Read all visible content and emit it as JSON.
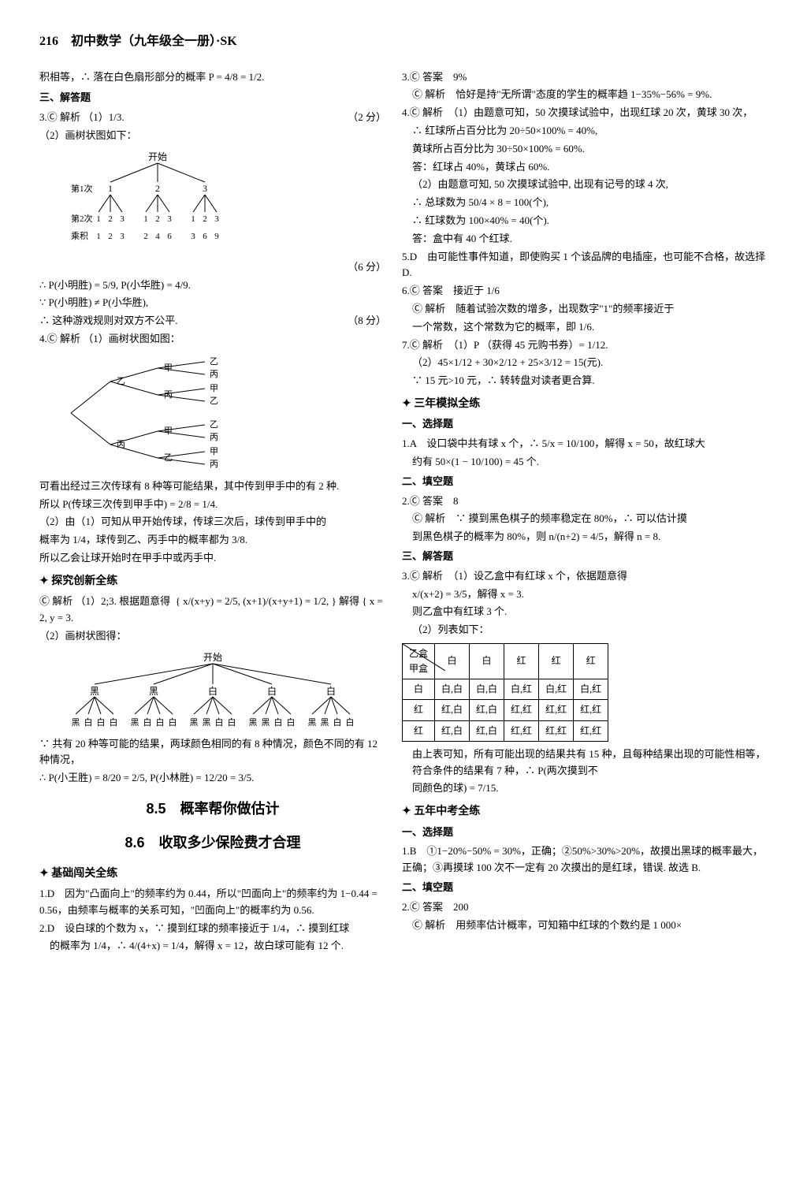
{
  "header": {
    "page_num": "216",
    "title": "初中数学（九年级全一册）·SK"
  },
  "left": {
    "intro": "积相等，∴ 落在白色扇形部分的概率 P = 4/8 = 1/2.",
    "sec3_title": "三、解答题",
    "q3_label": "3.Ⓒ 解析",
    "q3_part1": "（1）1/3.",
    "q3_score1": "（2 分）",
    "q3_part2_intro": "（2）画树状图如下：",
    "tree1": {
      "root": "开始",
      "row1_label": "第1次",
      "row1": [
        "1",
        "2",
        "3"
      ],
      "row2_label": "第2次",
      "row2_groups": [
        [
          "1",
          "2",
          "3"
        ],
        [
          "1",
          "2",
          "3"
        ],
        [
          "1",
          "2",
          "3"
        ]
      ],
      "row3_label": "乘积",
      "row3_groups": [
        [
          "1",
          "2",
          "3"
        ],
        [
          "2",
          "4",
          "6"
        ],
        [
          "3",
          "6",
          "9"
        ]
      ]
    },
    "q3_score2": "（6 分）",
    "q3_line1": "∴ P(小明胜) = 5/9, P(小华胜) = 4/9.",
    "q3_line2": "∵ P(小明胜) ≠ P(小华胜),",
    "q3_line3": "∴ 这种游戏规则对双方不公平.",
    "q3_score3": "（8 分）",
    "q4_label": "4.Ⓒ 解析",
    "q4_part1": "（1）画树状图如图：",
    "tree2_labels": [
      "甲",
      "乙",
      "丙"
    ],
    "q4_txt1": "可看出经过三次传球有 8 种等可能结果，其中传到甲手中的有 2 种.",
    "q4_txt2": "所以 P(传球三次传到甲手中) = 2/8 = 1/4.",
    "q4_txt3": "（2）由（1）可知从甲开始传球，传球三次后，球传到甲手中的",
    "q4_txt4": "概率为 1/4，球传到乙、丙手中的概率都为 3/8.",
    "q4_txt5": "所以乙会让球开始时在甲手中或丙手中.",
    "star1": "探究创新全练",
    "ex_label": "Ⓒ 解析",
    "ex_part1": "（1）2;3. 根据题意得",
    "ex_eq1_a": "x/(x+y) = 2/5,",
    "ex_eq1_b": "(x+1)/(x+y+1) = 1/2,",
    "ex_eq1_sol": "解得 { x = 2, y = 3.",
    "ex_part2": "（2）画树状图得：",
    "tree3": {
      "root": "开始",
      "row1": [
        "黑",
        "黑",
        "白",
        "白",
        "白"
      ],
      "row2_each": [
        "黑",
        "白",
        "白",
        "白"
      ]
    },
    "ex_txt1": "∵ 共有 20 种等可能的结果，两球颜色相同的有 8 种情况，颜色不同的有 12 种情况，",
    "ex_txt2": "∴ P(小王胜) = 8/20 = 2/5, P(小林胜) = 12/20 = 3/5.",
    "title85": "8.5　概率帮你做估计",
    "title86": "8.6　收取多少保险费才合理",
    "star2": "基础闯关全练",
    "b1": "1.D　因为\"凸面向上\"的频率约为 0.44，所以\"凹面向上\"的频率约为 1−0.44 = 0.56，由频率与概率的关系可知，\"凹面向上\"的概率约为 0.56.",
    "b2a": "2.D　设白球的个数为 x，∵ 摸到红球的频率接近于 1/4，∴ 摸到红球",
    "b2b": "的概率为 1/4，∴ 4/(4+x) = 1/4，解得 x = 12，故白球可能有 12 个."
  },
  "right": {
    "r3": "3.Ⓒ 答案　9%",
    "r3_exp": "Ⓒ 解析　恰好是持\"无所谓\"态度的学生的概率趋 1−35%−56% = 9%.",
    "r4_a": "4.Ⓒ 解析　（1）由题意可知，50 次摸球试验中，出现红球 20 次，黄球 30 次，",
    "r4_b": "∴ 红球所占百分比为 20÷50×100% = 40%,",
    "r4_c": "黄球所占百分比为 30÷50×100% = 60%.",
    "r4_d": "答：红球占 40%，黄球占 60%.",
    "r4_e": "（2）由题意可知, 50 次摸球试验中, 出现有记号的球 4 次,",
    "r4_f": "∴ 总球数为 50/4 × 8 = 100(个),",
    "r4_g": "∴ 红球数为 100×40% = 40(个).",
    "r4_h": "答：盒中有 40 个红球.",
    "r5": "5.D　由可能性事件知道，即使购买 1 个该品牌的电插座，也可能不合格，故选择 D.",
    "r6a": "6.Ⓒ 答案　接近于 1/6",
    "r6b": "Ⓒ 解析　随着试验次数的增多，出现数字\"1\"的频率接近于",
    "r6c": "一个常数，这个常数为它的概率，即 1/6.",
    "r7a": "7.Ⓒ 解析　（1）P （获得 45 元购书券）= 1/12.",
    "r7b": "（2）45×1/12 + 30×2/12 + 25×3/12 = 15(元).",
    "r7c": "∵ 15 元>10 元，∴ 转转盘对读者更合算.",
    "star3": "三年模拟全练",
    "s1_title": "一、选择题",
    "s1_a": "1.A　设口袋中共有球 x 个，∴ 5/x = 10/100，解得 x = 50，故红球大",
    "s1_b": "约有 50×(1 − 10/100) = 45 个.",
    "s2_title": "二、填空题",
    "s2_a": "2.Ⓒ 答案　8",
    "s2_b": "Ⓒ 解析　∵ 摸到黑色棋子的频率稳定在 80%，∴ 可以估计摸",
    "s2_c": "到黑色棋子的概率为 80%，则 n/(n+2) = 4/5，解得 n = 8.",
    "s3_title": "三、解答题",
    "s3_a": "3.Ⓒ 解析　（1）设乙盒中有红球 x 个，依据题意得",
    "s3_b": "x/(x+2) = 3/5，解得 x = 3.",
    "s3_c": "则乙盒中有红球 3 个.",
    "s3_d": "（2）列表如下：",
    "table": {
      "corner_top": "乙盒",
      "corner_left": "甲盒",
      "cols": [
        "白",
        "白",
        "红",
        "红",
        "红"
      ],
      "rows": [
        {
          "h": "白",
          "cells": [
            "白,白",
            "白,白",
            "白,红",
            "白,红",
            "白,红"
          ]
        },
        {
          "h": "红",
          "cells": [
            "红,白",
            "红,白",
            "红,红",
            "红,红",
            "红,红"
          ]
        },
        {
          "h": "红",
          "cells": [
            "红,白",
            "红,白",
            "红,红",
            "红,红",
            "红,红"
          ]
        }
      ]
    },
    "s3_e": "由上表可知，所有可能出现的结果共有 15 种，且每种结果出现的可能性相等，符合条件的结果有 7 种，∴ P(两次摸到不",
    "s3_f": "同颜色的球) = 7/15.",
    "star4": "五年中考全练",
    "c1_title": "一、选择题",
    "c1_a": "1.B　①1−20%−50% = 30%，正确；②50%>30%>20%，故摸出黑球的概率最大，正确；③再摸球 100 次不一定有 20 次摸出的是红球，错误. 故选 B.",
    "c2_title": "二、填空题",
    "c2_a": "2.Ⓒ 答案　200",
    "c2_b": "Ⓒ 解析　用频率估计概率，可知箱中红球的个数约是 1 000×"
  }
}
